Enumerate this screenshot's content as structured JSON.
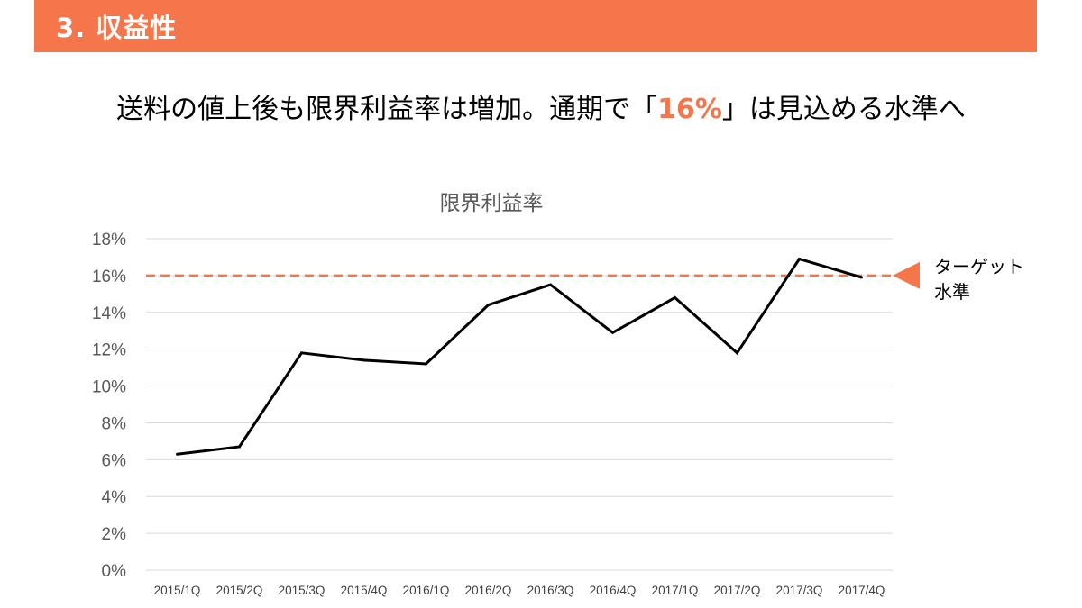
{
  "header": {
    "title": "3. 収益性",
    "accent_color": "#f4764a"
  },
  "headline": {
    "before": "送料の値上後も限界利益率は増加。通期で「",
    "highlight": "16%",
    "after": "」は見込める水準へ"
  },
  "chart_data": {
    "type": "line",
    "title": "限界利益率",
    "categories": [
      "2015/1Q",
      "2015/2Q",
      "2015/3Q",
      "2015/4Q",
      "2016/1Q",
      "2016/2Q",
      "2016/3Q",
      "2016/4Q",
      "2017/1Q",
      "2017/2Q",
      "2017/3Q",
      "2017/4Q"
    ],
    "series": [
      {
        "values": [
          6.3,
          6.7,
          11.8,
          11.4,
          11.2,
          14.4,
          15.5,
          12.9,
          14.8,
          11.8,
          16.9,
          15.9
        ],
        "color": "#000000"
      }
    ],
    "ylim": [
      0,
      18
    ],
    "yticks": [
      0,
      2,
      4,
      6,
      8,
      10,
      12,
      14,
      16,
      18
    ],
    "y_tick_suffix": "%",
    "grid": true,
    "grid_color": "#d9d9d9",
    "target": {
      "value": 16,
      "label_line1": "ターゲット",
      "label_line2": "水準",
      "color": "#f4764a",
      "style": "dashed"
    }
  }
}
